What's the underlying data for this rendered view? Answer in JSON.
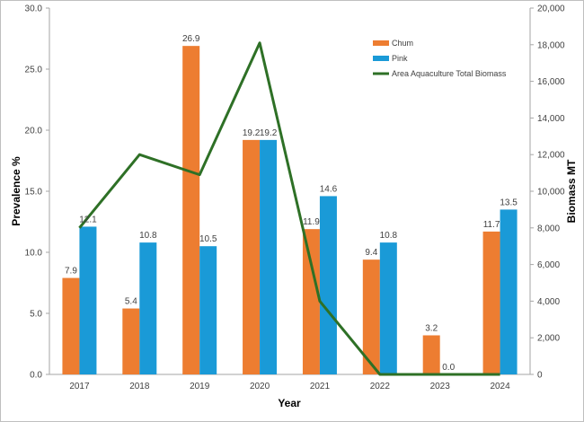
{
  "chart_data": {
    "type": "bar+line",
    "categories": [
      "2017",
      "2018",
      "2019",
      "2020",
      "2021",
      "2022",
      "2023",
      "2024"
    ],
    "xlabel": "Year",
    "ylabel": "Prevalence %",
    "y2label": "Biomass MT",
    "ylim": [
      0,
      30
    ],
    "y2lim": [
      0,
      20000
    ],
    "yticks": [
      "0.0",
      "5.0",
      "10.0",
      "15.0",
      "20.0",
      "25.0",
      "30.0"
    ],
    "y2ticks": [
      "0",
      "2,000",
      "4,000",
      "6,000",
      "8,000",
      "10,000",
      "12,000",
      "14,000",
      "16,000",
      "18,000",
      "20,000"
    ],
    "grid": false,
    "legend_position": "top-right",
    "series": [
      {
        "name": "Chum",
        "type": "bar",
        "axis": "left",
        "color": "#ED7D31",
        "values": [
          7.9,
          5.4,
          26.9,
          19.2,
          11.9,
          9.4,
          3.2,
          11.7
        ],
        "labels": [
          "7.9",
          "5.4",
          "26.9",
          "19.2",
          "11.9",
          "9.4",
          "3.2",
          "11.7"
        ]
      },
      {
        "name": "Pink",
        "type": "bar",
        "axis": "right-none",
        "color": "#1A9AD7",
        "values": [
          12.1,
          10.8,
          10.5,
          19.2,
          14.6,
          10.8,
          0.0,
          13.5
        ],
        "labels": [
          "12.1",
          "10.8",
          "10.5",
          "19.2",
          "14.6",
          "10.8",
          "0.0",
          "13.5"
        ]
      },
      {
        "name": "Area Aquaculture Total Biomass",
        "type": "line",
        "axis": "right",
        "color": "#2E7026",
        "values": [
          8000,
          12000,
          10900,
          18100,
          4000,
          0,
          0,
          0
        ]
      }
    ]
  }
}
